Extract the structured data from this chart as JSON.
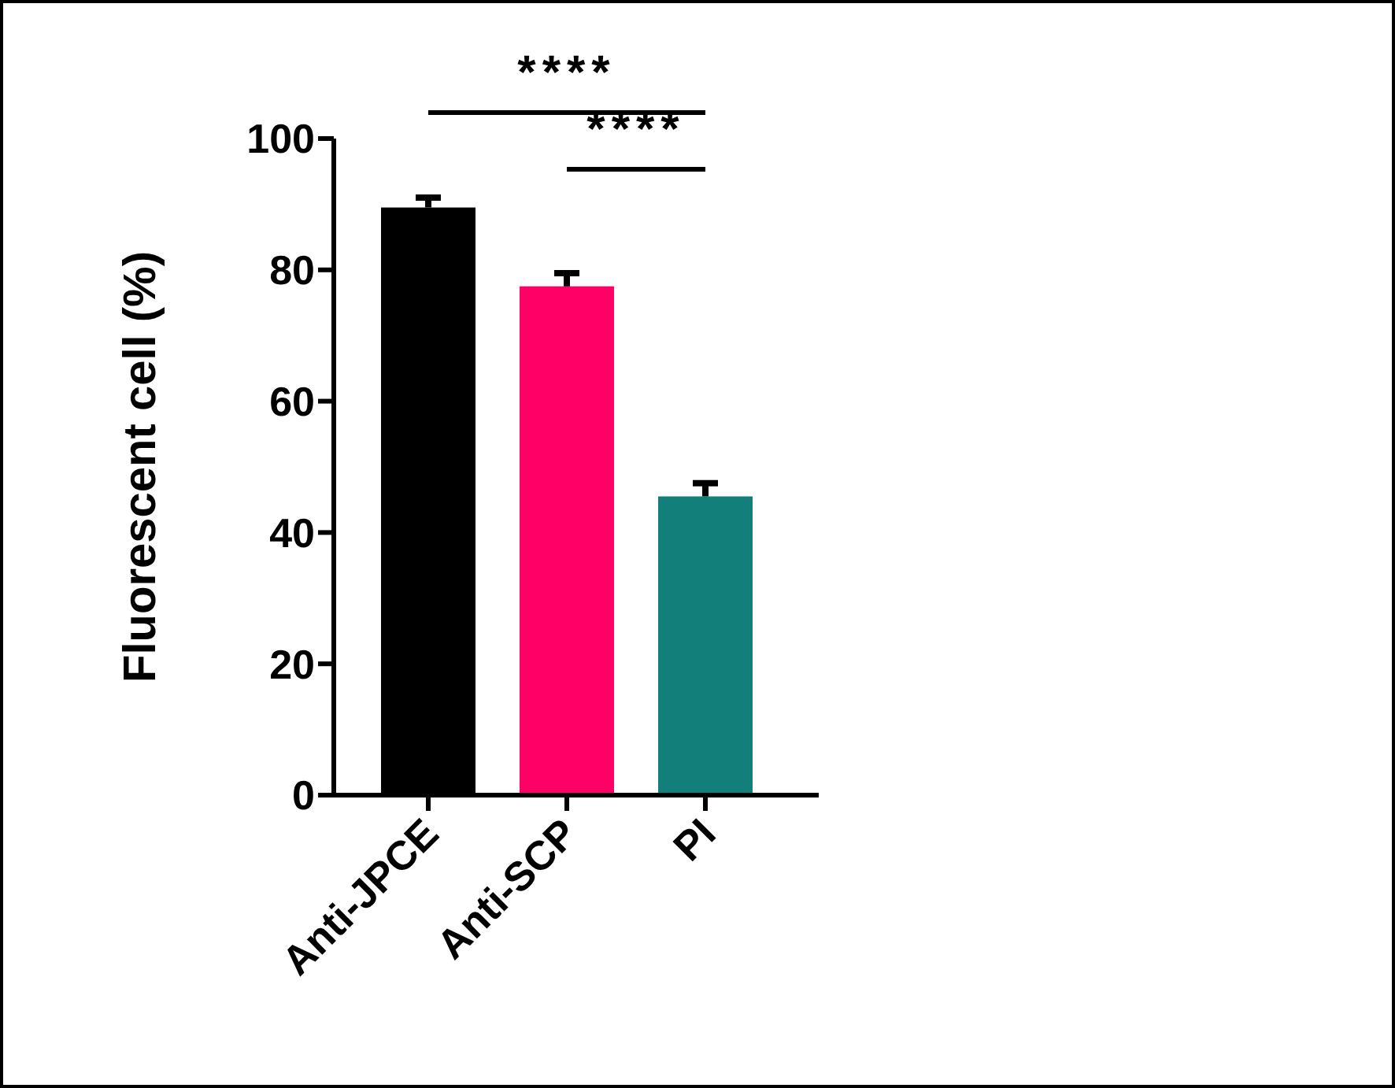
{
  "chart_data": {
    "type": "bar",
    "ylabel": "Fluorescent cell (%)",
    "categories": [
      "Anti-JPCE",
      "Anti-SCP",
      "PI"
    ],
    "values": [
      89.5,
      77.5,
      45.5
    ],
    "errors": [
      1.5,
      2,
      2
    ],
    "colors": [
      "#000000",
      "#ff0066",
      "#127f7b"
    ],
    "ylim": [
      0,
      100
    ],
    "yticks": [
      0,
      20,
      40,
      60,
      80,
      100
    ],
    "annotations": [
      "****",
      "****"
    ]
  }
}
